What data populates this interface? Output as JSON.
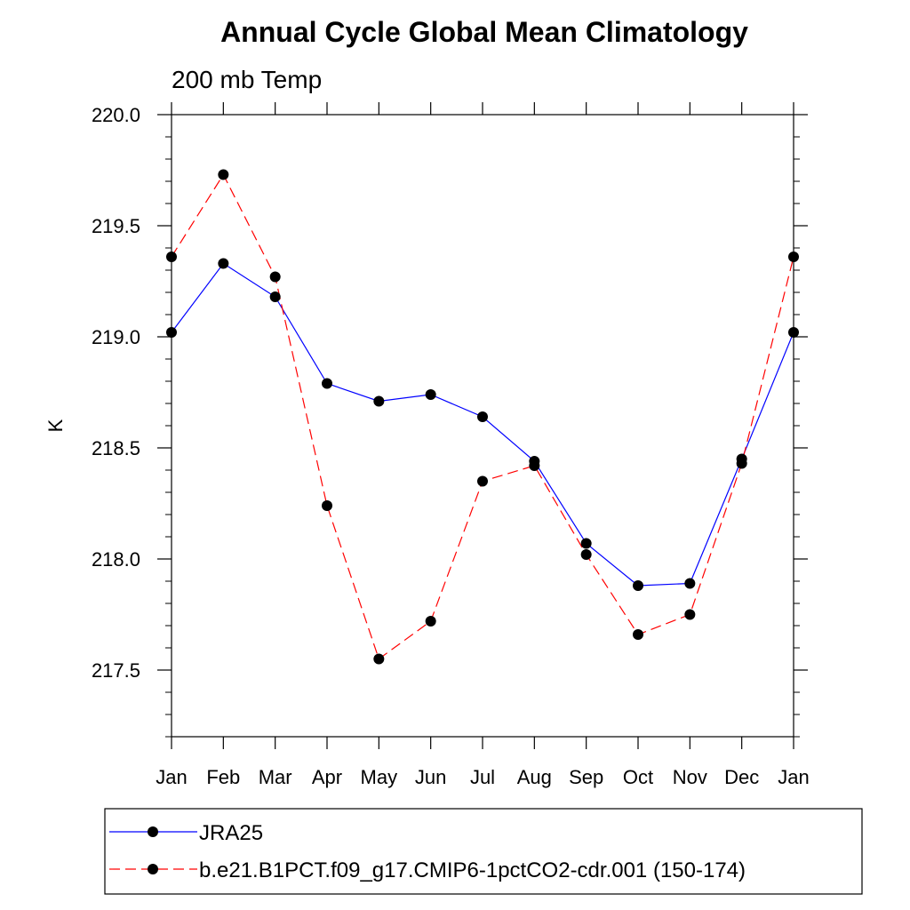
{
  "chart_data": {
    "type": "line",
    "title": "Annual Cycle Global Mean Climatology",
    "subtitle": "200 mb Temp",
    "xlabel": "",
    "ylabel": "K",
    "categories": [
      "Jan",
      "Feb",
      "Mar",
      "Apr",
      "May",
      "Jun",
      "Jul",
      "Aug",
      "Sep",
      "Oct",
      "Nov",
      "Dec",
      "Jan"
    ],
    "ylim": [
      217.2,
      220.0
    ],
    "yticks": [
      217.5,
      218.0,
      218.5,
      219.0,
      219.5,
      220.0
    ],
    "ytick_labels": [
      "217.5",
      "218.0",
      "218.5",
      "219.0",
      "219.5",
      "220.0"
    ],
    "series": [
      {
        "name": "JRA25",
        "color": "#0000ff",
        "dash": "solid",
        "values": [
          219.02,
          219.33,
          219.18,
          218.79,
          218.71,
          218.74,
          218.64,
          218.44,
          218.07,
          217.88,
          217.89,
          218.45,
          219.02
        ]
      },
      {
        "name": "b.e21.B1PCT.f09_g17.CMIP6-1pctCO2-cdr.001 (150-174)",
        "color": "#ff0000",
        "dash": "dashed",
        "values": [
          219.36,
          219.73,
          219.27,
          218.24,
          217.55,
          217.72,
          218.35,
          218.42,
          218.02,
          217.66,
          217.75,
          218.43,
          219.36
        ]
      }
    ],
    "legend_position": "bottom"
  }
}
